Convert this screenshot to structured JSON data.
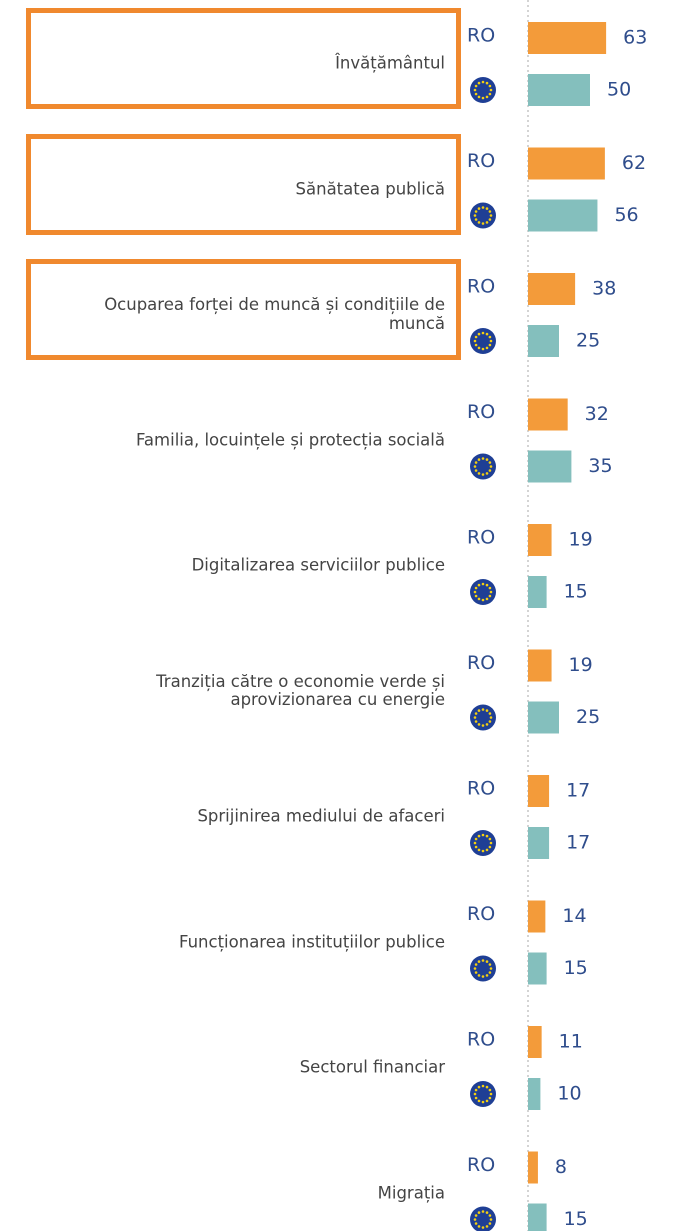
{
  "chart_data": {
    "type": "bar",
    "orientation": "horizontal",
    "categories": [
      "Învățământul",
      "Sănătatea publică",
      "Ocuparea forței de muncă și condițiile de muncă",
      "Familia, locuințele și protecția socială",
      "Digitalizarea serviciilor publice",
      "Tranziția către o economie verde și aprovizionarea cu energie",
      "Sprijinirea mediului de afaceri",
      "Funcționarea instituțiilor publice",
      "Sectorul financiar",
      "Migrația"
    ],
    "series": [
      {
        "name": "RO",
        "color": "#f39b3a",
        "values": [
          63,
          62,
          38,
          32,
          19,
          19,
          17,
          14,
          11,
          8
        ]
      },
      {
        "color": "#84bfbd",
        "values": [
          50,
          56,
          25,
          35,
          15,
          25,
          17,
          15,
          10,
          15
        ]
      }
    ],
    "highlighted": [
      true,
      true,
      true,
      false,
      false,
      false,
      false,
      false,
      false,
      false
    ],
    "highlight_color": "#f0892e"
  }
}
